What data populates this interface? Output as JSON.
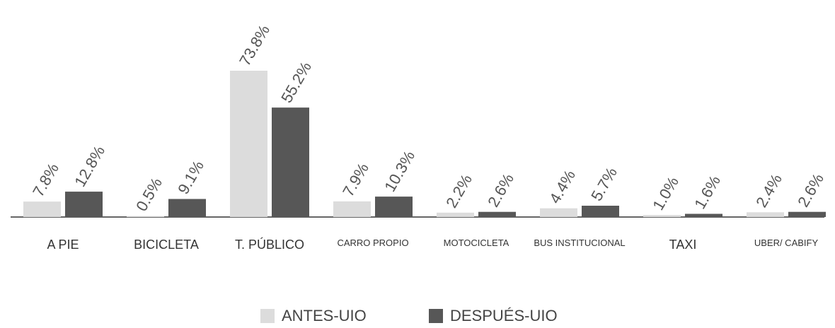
{
  "chart_data": {
    "type": "bar",
    "categories": [
      "A PIE",
      "BICICLETA",
      "T. PÚBLICO",
      "CARRO PROPIO",
      "MOTOCICLETA",
      "BUS INSTITUCIONAL",
      "TAXI",
      "UBER/ CABIFY"
    ],
    "series": [
      {
        "name": "ANTES-UIO",
        "color": "#dcdcdc",
        "values": [
          7.8,
          0.5,
          73.8,
          7.9,
          2.2,
          4.4,
          1.0,
          2.4
        ],
        "value_labels": [
          "7.8%",
          "0.5%",
          "73.8%",
          "7.9%",
          "2.2%",
          "4.4%",
          "1.0%",
          "2.4%"
        ]
      },
      {
        "name": "DESPUÉS-UIO",
        "color": "#575757",
        "values": [
          12.8,
          9.1,
          55.2,
          10.3,
          2.6,
          5.7,
          1.6,
          2.6
        ],
        "value_labels": [
          "12.8%",
          "9.1%",
          "55.2%",
          "10.3%",
          "2.6%",
          "5.7%",
          "1.6%",
          "2.6%"
        ]
      }
    ],
    "legend": "bottom"
  }
}
